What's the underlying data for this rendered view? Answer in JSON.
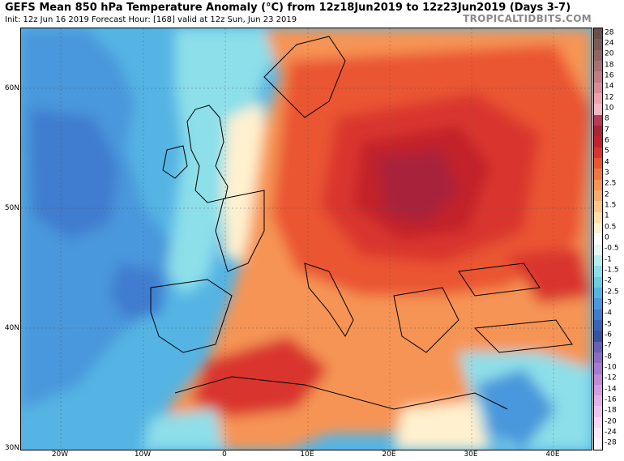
{
  "header": {
    "title": "GEFS Mean 850 hPa Temperature Anomaly (°C) from 12z18Jun2019 to 12z23Jun2019 (Days 3-7)",
    "subtitle": "Init: 12z Jun 16 2019   Forecast Hour: [168]   valid at 12z Sun, Jun 23 2019",
    "site": "TROPICALTIDBITS.COM"
  },
  "map": {
    "lat_labels": [
      "60N",
      "50N",
      "40N",
      "30N"
    ],
    "lon_labels": [
      "20W",
      "10W",
      "0",
      "10E",
      "20E",
      "30E",
      "40E"
    ]
  },
  "colorbar": {
    "labels": [
      "28",
      "24",
      "20",
      "18",
      "16",
      "14",
      "12",
      "10",
      "8",
      "7",
      "6",
      "5",
      "4",
      "3",
      "2.5",
      "2",
      "1.5",
      "1",
      "0.5",
      "0",
      "-0.5",
      "-1",
      "-1.5",
      "-2",
      "-2.5",
      "-3",
      "-4",
      "-5",
      "-6",
      "-7",
      "-8",
      "-10",
      "-12",
      "-14",
      "-16",
      "-18",
      "-20",
      "-24",
      "-28"
    ],
    "colors": [
      "#6b4f4f",
      "#7d5a5a",
      "#936464",
      "#a87070",
      "#c07c82",
      "#d98c97",
      "#ef9fb0",
      "#f5b5c5",
      "#b83a58",
      "#a8243a",
      "#c3212b",
      "#d9352f",
      "#ea5530",
      "#f07840",
      "#f69455",
      "#f9ad6c",
      "#fbc888",
      "#fde0a8",
      "#fff1cf",
      "#ffffff",
      "#e4f7f4",
      "#b9ecee",
      "#8ddfe9",
      "#6ccbe6",
      "#55b4e3",
      "#4a97dc",
      "#3f7bcf",
      "#3a64b8",
      "#3553a0",
      "#6a60b8",
      "#8c6cc6",
      "#a779d0",
      "#c08ad8",
      "#d59de0",
      "#e3b0e8",
      "#eec4ef",
      "#f6d8f5",
      "#fae8fa",
      "#fdf4fd"
    ]
  }
}
